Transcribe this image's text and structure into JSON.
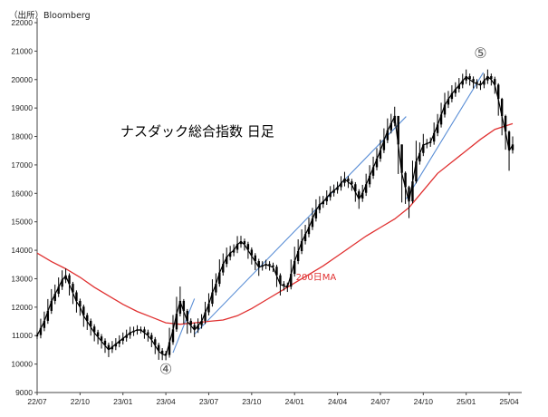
{
  "source_note": "（出所）Bloomberg",
  "chart_data": {
    "type": "line",
    "title": "ナスダック総合指数 日足",
    "xlabel": "",
    "ylabel": "",
    "ylim": [
      9000,
      22000
    ],
    "grid": false,
    "x_tick_labels": [
      "22/07",
      "22/10",
      "23/01",
      "23/04",
      "23/07",
      "23/10",
      "24/01",
      "24/04",
      "24/07",
      "24/10",
      "25/01",
      "25/04"
    ],
    "y_ticks": [
      9000,
      10000,
      11000,
      12000,
      13000,
      14000,
      15000,
      16000,
      17000,
      18000,
      19000,
      20000,
      21000,
      22000
    ],
    "series": [
      {
        "kind": "candlestick",
        "color": "#000000",
        "x": [
          0.0,
          0.25,
          0.5,
          0.75,
          1.0,
          1.25,
          1.5,
          1.75,
          2.0,
          2.25,
          2.5,
          2.75,
          3.0,
          3.25,
          3.5,
          3.75,
          4.0,
          4.25,
          4.5,
          4.75,
          5.0,
          5.25,
          5.5,
          5.75,
          6.0,
          6.25,
          6.5,
          6.75,
          7.0,
          7.25,
          7.5,
          7.75,
          8.0,
          8.25,
          8.5,
          8.75,
          9.0,
          9.25,
          9.5,
          9.75,
          10.0,
          10.25,
          10.5,
          10.75,
          11.0,
          11.25,
          11.5,
          11.75,
          12.0,
          12.25,
          12.5,
          12.75,
          13.0,
          13.25,
          13.5,
          13.75,
          14.0,
          14.25,
          14.5,
          14.75,
          15.0,
          15.25,
          15.5,
          15.75,
          16.0,
          16.25,
          16.5,
          16.75,
          17.0,
          17.25,
          17.5,
          17.75,
          18.0,
          18.25,
          18.5,
          18.75,
          19.0,
          19.25,
          19.5,
          19.75,
          20.0,
          20.25,
          20.5,
          20.75,
          21.0,
          21.25,
          21.5,
          21.75,
          22.0,
          22.25,
          22.5,
          22.75,
          23.0,
          23.25,
          23.5,
          23.75,
          24.0,
          24.25,
          24.5,
          24.75,
          25.0,
          25.25,
          25.5,
          25.75,
          26.0,
          26.25,
          26.5,
          26.75,
          27.0,
          27.25,
          27.5,
          27.75,
          28.0,
          28.25,
          28.5,
          28.75,
          29.0,
          29.25,
          29.5,
          29.75,
          30.0,
          30.25,
          30.5,
          30.75,
          31.0,
          31.25,
          31.5,
          31.75,
          32.0,
          32.25,
          32.5,
          32.75,
          33.0,
          33.25
        ],
        "values": [
          11000,
          11250,
          11500,
          11850,
          12200,
          12450,
          12700,
          12950,
          13100,
          12800,
          12500,
          12200,
          12000,
          11700,
          11500,
          11300,
          11100,
          10950,
          10800,
          10650,
          10500,
          10600,
          10700,
          10800,
          10900,
          11000,
          11100,
          11150,
          11200,
          11200,
          11100,
          11000,
          10850,
          10650,
          10450,
          10350,
          10300,
          10750,
          11200,
          11750,
          12200,
          11850,
          11500,
          11350,
          11200,
          11350,
          11500,
          11800,
          12100,
          12500,
          12800,
          13200,
          13500,
          13750,
          13900,
          14000,
          14200,
          14300,
          14200,
          14000,
          13800,
          13600,
          13400,
          13450,
          13500,
          13450,
          13400,
          13100,
          12800,
          12750,
          12700,
          13150,
          13600,
          13950,
          14300,
          14550,
          14800,
          15100,
          15400,
          15600,
          15700,
          15850,
          16000,
          16100,
          16200,
          16350,
          16500,
          16400,
          16300,
          16050,
          15800,
          16000,
          16300,
          16600,
          16900,
          17200,
          17500,
          17850,
          18200,
          18450,
          18700,
          17700,
          16700,
          16200,
          15700,
          16400,
          17100,
          17400,
          17700,
          17750,
          17800,
          18100,
          18400,
          18750,
          19100,
          19300,
          19500,
          19650,
          19800,
          19950,
          20100,
          20000,
          19900,
          19850,
          19800,
          19950,
          20100,
          20000,
          19800,
          19300,
          18700,
          18150,
          17500,
          17700
        ]
      },
      {
        "name": "200日MA",
        "kind": "line",
        "color": "#e03030",
        "x": [
          0,
          1,
          2,
          3,
          4,
          5,
          6,
          7,
          8,
          9,
          10,
          11,
          12,
          13,
          14,
          15,
          16,
          17,
          18,
          19,
          20,
          21,
          22,
          23,
          24,
          25,
          26,
          27,
          28,
          29,
          30,
          31,
          32,
          33.25
        ],
        "values": [
          13900,
          13600,
          13350,
          13050,
          12700,
          12400,
          12100,
          11850,
          11650,
          11450,
          11400,
          11450,
          11500,
          11550,
          11700,
          11950,
          12250,
          12550,
          12850,
          13150,
          13450,
          13800,
          14150,
          14500,
          14800,
          15100,
          15500,
          16100,
          16700,
          17100,
          17500,
          17900,
          18250,
          18450
        ]
      }
    ],
    "annotations": [
      {
        "text": "200日MA",
        "x": 19.5,
        "y": 12950,
        "color": "#e03030"
      },
      {
        "text": "④",
        "x": 9.0,
        "y": 9650
      },
      {
        "text": "⑤",
        "x": 31.0,
        "y": 20750
      }
    ],
    "trendlines": [
      {
        "color": "#5b8fd6",
        "points": [
          [
            9.5,
            10400
          ],
          [
            11.0,
            12300
          ]
        ]
      },
      {
        "color": "#5b8fd6",
        "points": [
          [
            11.0,
            11050
          ],
          [
            25.8,
            18700
          ]
        ]
      },
      {
        "color": "#5b8fd6",
        "points": [
          [
            25.8,
            15800
          ],
          [
            31.2,
            20250
          ]
        ]
      }
    ]
  }
}
